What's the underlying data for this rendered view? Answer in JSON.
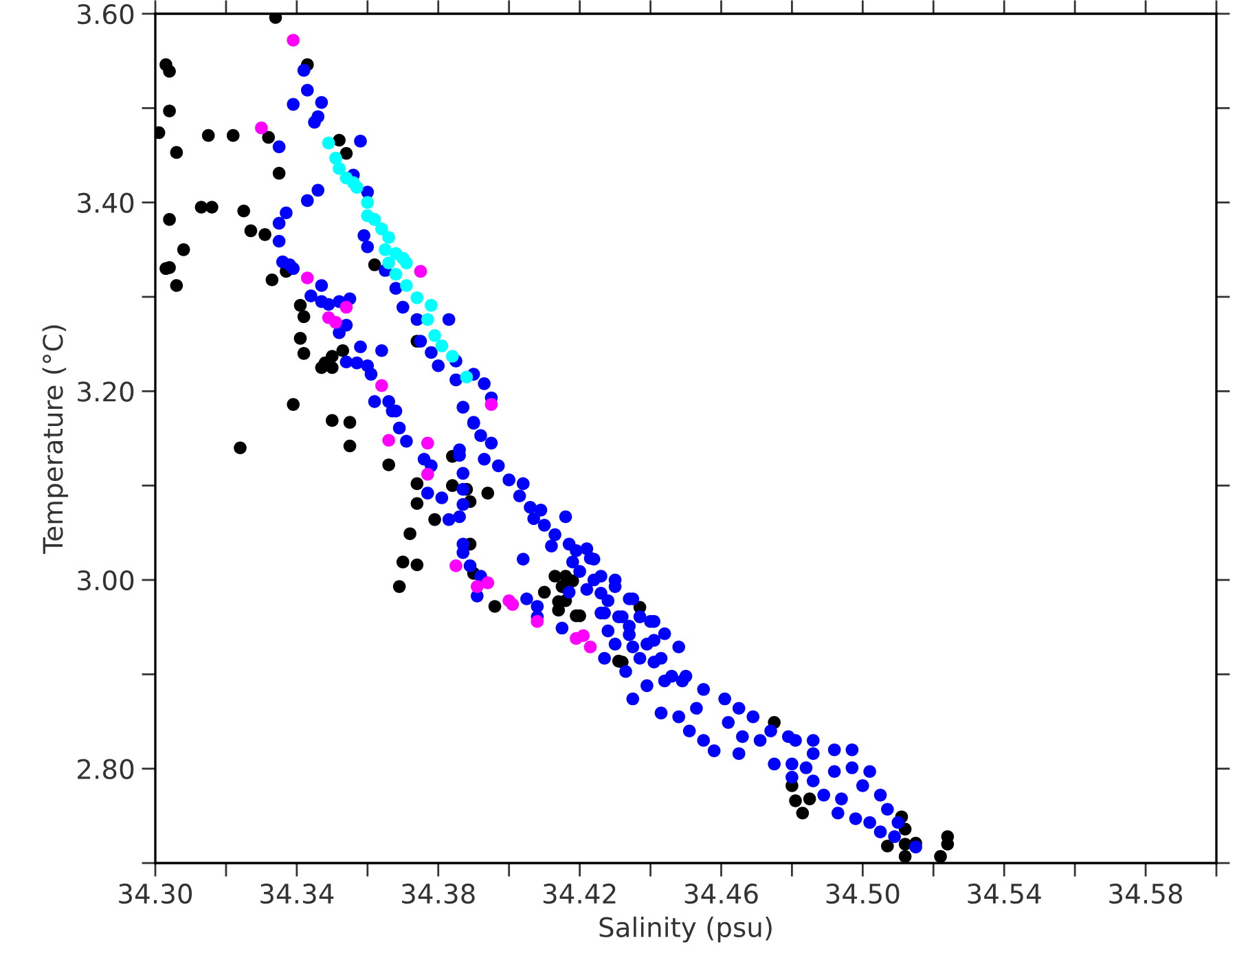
{
  "chart_data": {
    "type": "scatter",
    "xlabel": "Salinity (psu)",
    "ylabel": "Temperature (°C)",
    "marker": "circle",
    "xlim": [
      34.3,
      34.6
    ],
    "ylim": [
      2.7,
      3.6
    ],
    "xticks": [
      {
        "value": 34.3,
        "label": "34.30"
      },
      {
        "value": 34.32,
        "label": null
      },
      {
        "value": 34.34,
        "label": "34.34"
      },
      {
        "value": 34.36,
        "label": null
      },
      {
        "value": 34.38,
        "label": "34.38"
      },
      {
        "value": 34.4,
        "label": null
      },
      {
        "value": 34.42,
        "label": "34.42"
      },
      {
        "value": 34.44,
        "label": null
      },
      {
        "value": 34.46,
        "label": "34.46"
      },
      {
        "value": 34.48,
        "label": null
      },
      {
        "value": 34.5,
        "label": "34.50"
      },
      {
        "value": 34.52,
        "label": null
      },
      {
        "value": 34.54,
        "label": "34.54"
      },
      {
        "value": 34.56,
        "label": null
      },
      {
        "value": 34.58,
        "label": "34.58"
      },
      {
        "value": 34.6,
        "label": null
      }
    ],
    "yticks": [
      {
        "value": 2.7,
        "label": null
      },
      {
        "value": 2.8,
        "label": "2.80"
      },
      {
        "value": 2.9,
        "label": null
      },
      {
        "value": 3.0,
        "label": "3.00"
      },
      {
        "value": 3.1,
        "label": null
      },
      {
        "value": 3.2,
        "label": "3.20"
      },
      {
        "value": 3.3,
        "label": null
      },
      {
        "value": 3.4,
        "label": "3.40"
      },
      {
        "value": 3.5,
        "label": null
      },
      {
        "value": 3.6,
        "label": "3.60"
      }
    ],
    "series": [
      {
        "color": "#000000",
        "x": [
          34.334,
          34.343,
          34.303,
          34.304,
          34.304,
          34.301,
          34.315,
          34.322,
          34.332,
          34.306,
          34.335,
          34.352,
          34.354,
          34.313,
          34.316,
          34.325,
          34.304,
          34.327,
          34.331,
          34.308,
          34.303,
          34.304,
          34.306,
          34.333,
          34.337,
          34.362,
          34.341,
          34.342,
          34.341,
          34.342,
          34.348,
          34.35,
          34.353,
          34.347,
          34.35,
          34.339,
          34.35,
          34.355,
          34.324,
          34.355,
          34.374,
          34.366,
          34.374,
          34.374,
          34.384,
          34.384,
          34.388,
          34.389,
          34.394,
          34.379,
          34.372,
          34.37,
          34.374,
          34.369,
          34.389,
          34.39,
          34.396,
          34.41,
          34.413,
          34.416,
          34.418,
          34.415,
          34.414,
          34.416,
          34.414,
          34.419,
          34.431,
          34.437,
          34.42,
          34.432,
          34.475,
          34.48,
          34.481,
          34.483,
          34.485,
          34.511,
          34.512,
          34.507,
          34.512,
          34.515,
          34.512,
          34.522,
          34.524,
          34.524
        ],
        "values": [
          3.596,
          3.546,
          3.546,
          3.539,
          3.497,
          3.474,
          3.471,
          3.471,
          3.469,
          3.453,
          3.431,
          3.466,
          3.452,
          3.395,
          3.395,
          3.391,
          3.382,
          3.37,
          3.366,
          3.35,
          3.33,
          3.331,
          3.312,
          3.318,
          3.327,
          3.334,
          3.291,
          3.279,
          3.256,
          3.24,
          3.23,
          3.237,
          3.243,
          3.225,
          3.225,
          3.186,
          3.169,
          3.167,
          3.14,
          3.142,
          3.253,
          3.122,
          3.102,
          3.081,
          3.131,
          3.1,
          3.096,
          3.083,
          3.092,
          3.064,
          3.049,
          3.019,
          3.016,
          2.993,
          3.038,
          3.007,
          2.972,
          2.987,
          3.004,
          3.004,
          2.999,
          2.993,
          2.977,
          2.978,
          2.968,
          2.962,
          2.914,
          2.971,
          2.962,
          2.913,
          2.849,
          2.782,
          2.766,
          2.753,
          2.768,
          2.749,
          2.736,
          2.718,
          2.72,
          2.721,
          2.707,
          2.707,
          2.728,
          2.72
        ]
      },
      {
        "color": "#0000ff",
        "x": [
          34.342,
          34.343,
          34.339,
          34.347,
          34.346,
          34.345,
          34.358,
          34.335,
          34.346,
          34.343,
          34.337,
          34.335,
          34.335,
          34.336,
          34.338,
          34.339,
          34.347,
          34.344,
          34.347,
          34.349,
          34.352,
          34.355,
          34.352,
          34.354,
          34.358,
          34.364,
          34.354,
          34.357,
          34.36,
          34.361,
          34.362,
          34.366,
          34.368,
          34.369,
          34.371,
          34.356,
          34.36,
          34.359,
          34.36,
          34.365,
          34.368,
          34.37,
          34.374,
          34.383,
          34.375,
          34.378,
          34.38,
          34.385,
          34.385,
          34.39,
          34.393,
          34.395,
          34.387,
          34.39,
          34.395,
          34.386,
          34.367,
          34.376,
          34.378,
          34.377,
          34.381,
          34.383,
          34.386,
          34.386,
          34.387,
          34.387,
          34.387,
          34.387,
          34.387,
          34.389,
          34.392,
          34.391,
          34.404,
          34.405,
          34.408,
          34.408,
          34.415,
          34.417,
          34.39,
          34.392,
          34.393,
          34.397,
          34.4,
          34.404,
          34.403,
          34.406,
          34.409,
          34.407,
          34.416,
          34.41,
          34.413,
          34.412,
          34.417,
          34.419,
          34.422,
          34.418,
          34.42,
          34.424,
          34.424,
          34.43,
          34.422,
          34.426,
          34.428,
          34.435,
          34.426,
          34.431,
          34.428,
          34.434,
          34.44,
          34.43,
          34.435,
          34.441,
          34.448,
          34.427,
          34.433,
          34.437,
          34.441,
          34.446,
          34.45,
          34.423,
          34.426,
          34.43,
          34.434,
          34.437,
          34.427,
          34.432,
          34.441,
          34.444,
          34.434,
          34.439,
          34.443,
          34.435,
          34.439,
          34.444,
          34.449,
          34.443,
          34.448,
          34.453,
          34.455,
          34.451,
          34.455,
          34.458,
          34.461,
          34.465,
          34.469,
          34.462,
          34.466,
          34.471,
          34.465,
          34.474,
          34.479,
          34.481,
          34.486,
          34.475,
          34.48,
          34.484,
          34.486,
          34.492,
          34.497,
          34.48,
          34.486,
          34.492,
          34.497,
          34.502,
          34.489,
          34.494,
          34.5,
          34.505,
          34.493,
          34.498,
          34.502,
          34.507,
          34.505,
          34.509,
          34.515,
          34.51
        ],
        "values": [
          3.54,
          3.519,
          3.504,
          3.506,
          3.491,
          3.485,
          3.465,
          3.459,
          3.413,
          3.402,
          3.389,
          3.378,
          3.359,
          3.337,
          3.334,
          3.33,
          3.312,
          3.301,
          3.295,
          3.292,
          3.295,
          3.298,
          3.262,
          3.27,
          3.247,
          3.243,
          3.231,
          3.23,
          3.227,
          3.218,
          3.189,
          3.189,
          3.179,
          3.161,
          3.147,
          3.429,
          3.411,
          3.365,
          3.353,
          3.328,
          3.309,
          3.289,
          3.276,
          3.276,
          3.253,
          3.241,
          3.227,
          3.232,
          3.212,
          3.218,
          3.208,
          3.193,
          3.183,
          3.167,
          3.145,
          3.138,
          3.179,
          3.128,
          3.121,
          3.092,
          3.087,
          3.064,
          3.067,
          3.132,
          3.113,
          3.096,
          3.08,
          3.038,
          3.029,
          3.015,
          3.004,
          2.983,
          3.022,
          2.98,
          2.972,
          2.961,
          2.949,
          2.987,
          3.166,
          3.153,
          3.128,
          3.121,
          3.106,
          3.102,
          3.089,
          3.077,
          3.074,
          3.065,
          3.067,
          3.058,
          3.048,
          3.036,
          3.038,
          3.031,
          3.033,
          3.019,
          3.009,
          3.022,
          3.0,
          3.0,
          2.99,
          2.986,
          2.978,
          2.98,
          2.965,
          2.961,
          2.946,
          2.951,
          2.956,
          2.932,
          2.929,
          2.936,
          2.929,
          2.917,
          2.903,
          2.917,
          2.913,
          2.898,
          2.898,
          3.023,
          3.004,
          2.993,
          2.98,
          2.961,
          2.965,
          2.961,
          2.956,
          2.943,
          2.942,
          2.932,
          2.917,
          2.874,
          2.888,
          2.893,
          2.893,
          2.859,
          2.855,
          2.864,
          2.884,
          2.84,
          2.83,
          2.819,
          2.874,
          2.864,
          2.855,
          2.849,
          2.834,
          2.83,
          2.816,
          2.84,
          2.834,
          2.83,
          2.83,
          2.805,
          2.805,
          2.801,
          2.816,
          2.82,
          2.82,
          2.791,
          2.787,
          2.797,
          2.801,
          2.797,
          2.772,
          2.768,
          2.782,
          2.772,
          2.753,
          2.747,
          2.743,
          2.757,
          2.733,
          2.728,
          2.717,
          2.743
        ]
      },
      {
        "color": "#ff00ff",
        "x": [
          34.339,
          34.33,
          34.343,
          34.375,
          34.354,
          34.349,
          34.351,
          34.364,
          34.395,
          34.366,
          34.377,
          34.377,
          34.385,
          34.391,
          34.394,
          34.4,
          34.401,
          34.408,
          34.419,
          34.421,
          34.423
        ],
        "values": [
          3.572,
          3.479,
          3.32,
          3.327,
          3.289,
          3.278,
          3.273,
          3.206,
          3.186,
          3.148,
          3.145,
          3.112,
          3.015,
          2.993,
          2.997,
          2.978,
          2.974,
          2.956,
          2.938,
          2.941,
          2.929
        ]
      },
      {
        "color": "#00ffff",
        "x": [
          34.349,
          34.351,
          34.352,
          34.354,
          34.356,
          34.357,
          34.36,
          34.36,
          34.362,
          34.364,
          34.366,
          34.365,
          34.368,
          34.37,
          34.371,
          34.366,
          34.368,
          34.371,
          34.374,
          34.378,
          34.377,
          34.379,
          34.381,
          34.384,
          34.388
        ],
        "values": [
          3.463,
          3.447,
          3.436,
          3.426,
          3.421,
          3.416,
          3.4,
          3.386,
          3.382,
          3.372,
          3.363,
          3.35,
          3.346,
          3.341,
          3.336,
          3.336,
          3.324,
          3.312,
          3.299,
          3.291,
          3.276,
          3.259,
          3.248,
          3.237,
          3.215
        ]
      }
    ]
  }
}
